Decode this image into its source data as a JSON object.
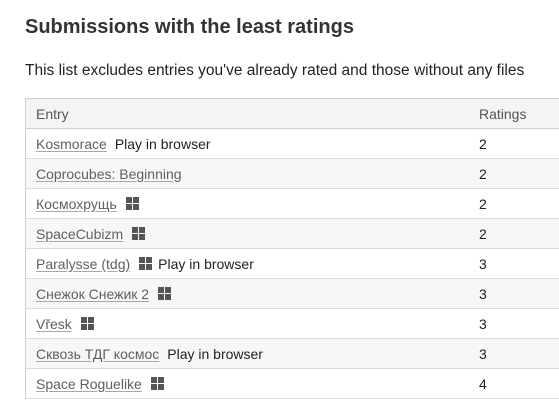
{
  "page": {
    "title": "Submissions with the least ratings",
    "subtitle": "This list excludes entries you've already rated and those without any files"
  },
  "table": {
    "headers": {
      "entry": "Entry",
      "ratings": "Ratings"
    },
    "play_label": "Play in browser",
    "platform_icon": "windows-icon",
    "rows": [
      {
        "name": "Kosmorace",
        "windows": false,
        "browser": true,
        "ratings": "2"
      },
      {
        "name": "Coprocubes: Beginning",
        "windows": false,
        "browser": false,
        "ratings": "2"
      },
      {
        "name": "Космохрущь",
        "windows": true,
        "browser": false,
        "ratings": "2"
      },
      {
        "name": "SpaceCubizm",
        "windows": true,
        "browser": false,
        "ratings": "2"
      },
      {
        "name": "Paralysse (tdg)",
        "windows": true,
        "browser": true,
        "ratings": "3"
      },
      {
        "name": "Снежок Снежик 2",
        "windows": true,
        "browser": false,
        "ratings": "3"
      },
      {
        "name": "Vřesk",
        "windows": true,
        "browser": false,
        "ratings": "3"
      },
      {
        "name": "Сквозь ТДГ космос",
        "windows": false,
        "browser": true,
        "ratings": "3"
      },
      {
        "name": "Space Roguelike",
        "windows": true,
        "browser": false,
        "ratings": "4"
      }
    ]
  }
}
